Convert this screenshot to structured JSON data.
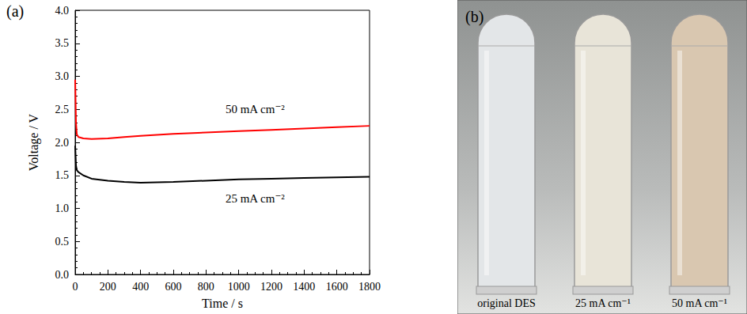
{
  "chart_data": {
    "type": "line",
    "title": "(a)",
    "x_label": "Time / s",
    "y_label": "Voltage / V",
    "xlim": [
      0,
      1800
    ],
    "xticks": [
      0,
      200,
      400,
      600,
      800,
      1000,
      1200,
      1400,
      1600,
      1800
    ],
    "ylim": [
      0,
      4
    ],
    "yticks": [
      {
        "value": 0,
        "label": "0.0"
      },
      {
        "value": 0.5,
        "label": "0.5"
      },
      {
        "value": 1,
        "label": "1.0"
      },
      {
        "value": 1.5,
        "label": "1.5"
      },
      {
        "value": 2,
        "label": "2.0"
      },
      {
        "value": 2.5,
        "label": "2.5"
      },
      {
        "value": 3,
        "label": "3.0"
      },
      {
        "value": 3.5,
        "label": "3.5"
      },
      {
        "value": 4,
        "label": "4.0"
      }
    ],
    "grid": false,
    "x": [
      0,
      5,
      10,
      20,
      50,
      100,
      200,
      300,
      400,
      600,
      800,
      1000,
      1200,
      1400,
      1600,
      1800
    ],
    "series": [
      {
        "name": "50 mA cm⁻²",
        "color": "#ff0000",
        "values": [
          2.95,
          2.3,
          2.12,
          2.08,
          2.06,
          2.05,
          2.06,
          2.08,
          2.1,
          2.13,
          2.15,
          2.17,
          2.19,
          2.21,
          2.23,
          2.25
        ]
      },
      {
        "name": "25 mA cm⁻²",
        "color": "#000000",
        "values": [
          1.95,
          1.65,
          1.58,
          1.55,
          1.5,
          1.45,
          1.42,
          1.4,
          1.39,
          1.4,
          1.42,
          1.44,
          1.45,
          1.46,
          1.47,
          1.48
        ]
      }
    ],
    "annotations": [
      {
        "text": "50 mA cm⁻²",
        "x": 1100,
        "y": 2.5
      },
      {
        "text": "25 mA cm⁻²",
        "x": 1100,
        "y": 1.15
      }
    ]
  },
  "photo": {
    "label": "(b)",
    "vials": [
      {
        "label": "original DES",
        "color": "#e3e6e8"
      },
      {
        "label": "25 mA cm⁻¹",
        "color": "#e8e4d8"
      },
      {
        "label": "50 mA cm⁻¹",
        "color": "#d9c7b0"
      }
    ]
  }
}
